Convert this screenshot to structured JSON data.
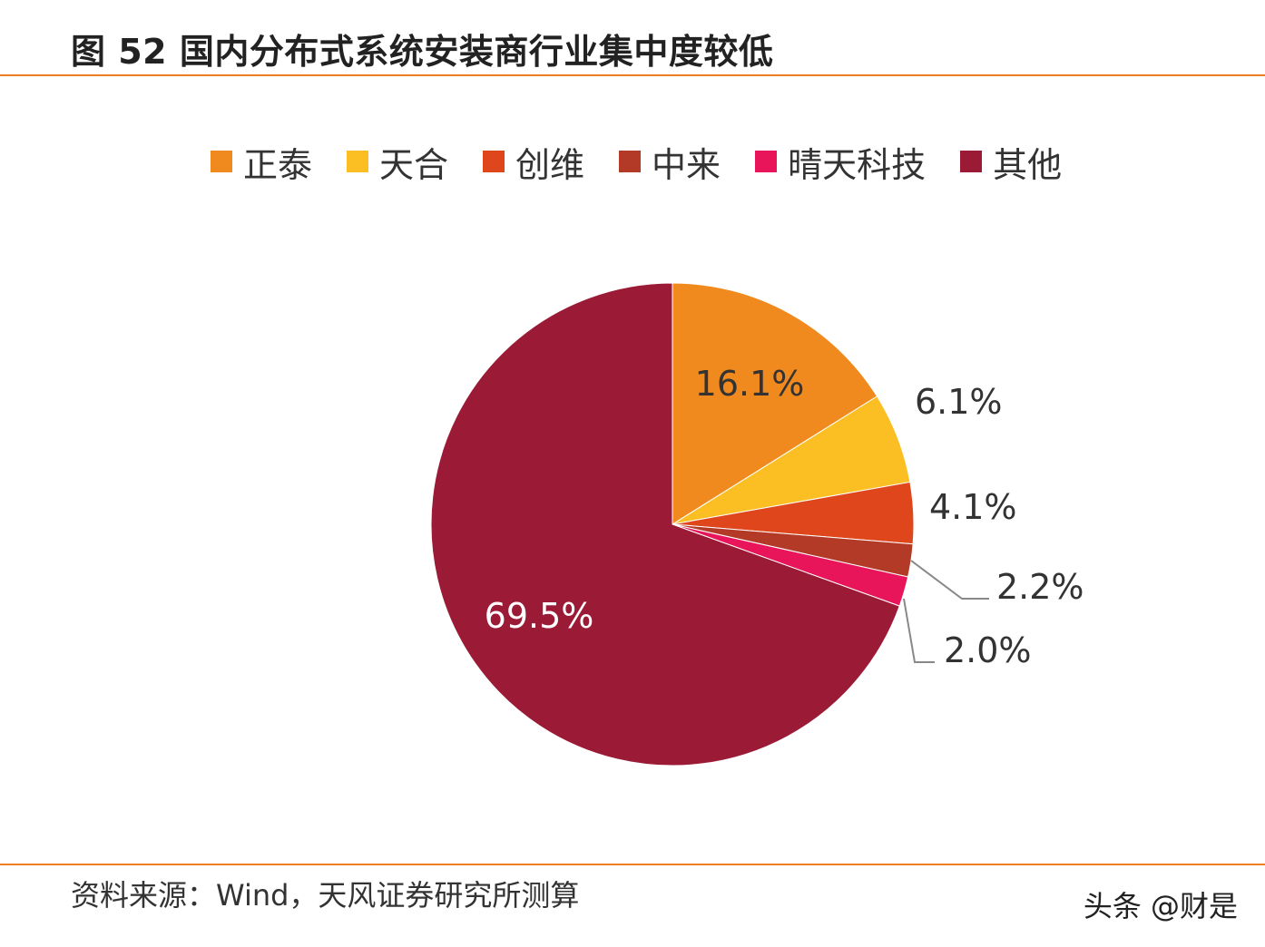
{
  "figure": {
    "title": "图 52 国内分布式系统安装商行业集中度较低",
    "source": "资料来源：Wind，天风证券研究所测算",
    "watermark": "头条 @财是"
  },
  "chart_data": {
    "type": "pie",
    "title": "图 52 国内分布式系统安装商行业集中度较低",
    "legend_position": "top",
    "slices": [
      {
        "name": "正泰",
        "value": 16.1,
        "label": "16.1%",
        "color": "#f08a1e"
      },
      {
        "name": "天合",
        "value": 6.1,
        "label": "6.1%",
        "color": "#fbbf24"
      },
      {
        "name": "创维",
        "value": 4.1,
        "label": "4.1%",
        "color": "#e0461b"
      },
      {
        "name": "中来",
        "value": 2.2,
        "label": "2.2%",
        "color": "#b33a26"
      },
      {
        "name": "晴天科技",
        "value": 2.0,
        "label": "2.0%",
        "color": "#e8155a"
      },
      {
        "name": "其他",
        "value": 69.5,
        "label": "69.5%",
        "color": "#9b1a35"
      }
    ]
  }
}
